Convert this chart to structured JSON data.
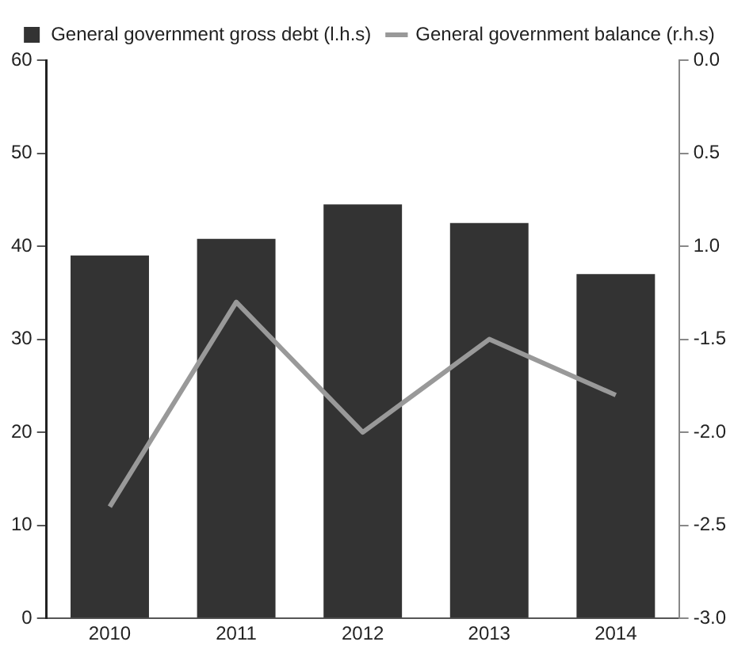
{
  "chart_data": {
    "type": "bar",
    "categories": [
      "2010",
      "2011",
      "2012",
      "2013",
      "2014"
    ],
    "series": [
      {
        "name": "General government gross debt (l.h.s)",
        "color": "#333333",
        "values": [
          39,
          40.8,
          44.5,
          42.5,
          37
        ]
      },
      {
        "name": "General government balance (r.h.s)",
        "type": "line",
        "axis": "y2",
        "color": "#999999",
        "values": [
          -2.4,
          -1.3,
          -2.0,
          -1.5,
          -1.8
        ]
      }
    ],
    "ylim": [
      0,
      60
    ],
    "yticks": [
      0,
      10,
      20,
      30,
      40,
      50,
      60
    ],
    "y2lim": [
      -3,
      0
    ],
    "y2ticks": [
      {
        "value": 0,
        "label": "0.0"
      },
      {
        "value": -0.5,
        "label": "0.5"
      },
      {
        "value": -1,
        "label": "1.0"
      },
      -1.5,
      {
        "value": -2,
        "label": "-2.0"
      },
      -2.5,
      {
        "value": -3,
        "label": "-3.0"
      }
    ],
    "legend": "top",
    "marker": "none",
    "line_style": "solid"
  }
}
